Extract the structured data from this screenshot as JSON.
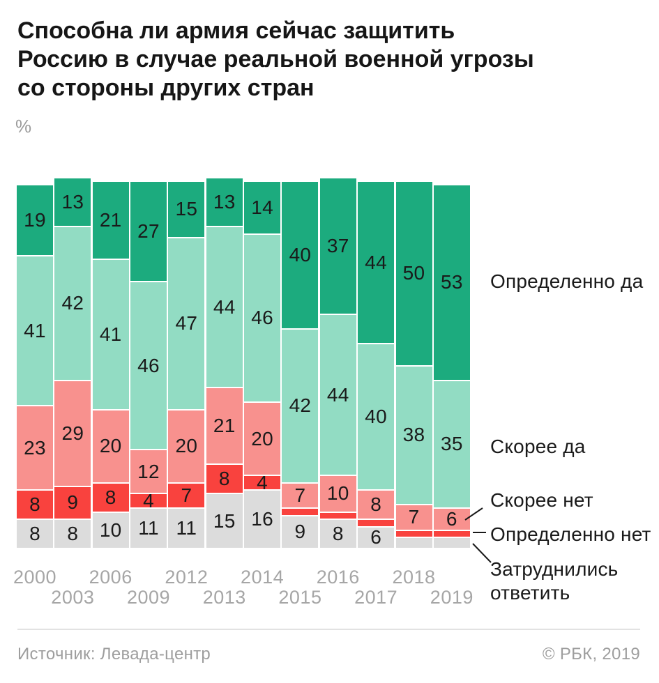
{
  "header": {
    "title": "Способна ли армия сейчас защитить\nРоссию в случае реальной военной угрозы\nсо стороны других стран",
    "unit": "%"
  },
  "chart_data": {
    "type": "bar",
    "subtype": "stacked-100-percent",
    "title": "Способна ли армия сейчас защитить Россию в случае реальной военной угрозы со стороны других стран",
    "unit": "%",
    "grid": false,
    "legend_position": "right",
    "value_labels": "inside-segments",
    "ylim": [
      0,
      100
    ],
    "categories": [
      "2000",
      "2003",
      "2006",
      "2009",
      "2012",
      "2013",
      "2014",
      "2015",
      "2016",
      "2017",
      "2018",
      "2019"
    ],
    "category_label_rows": [
      1,
      2,
      1,
      2,
      1,
      2,
      1,
      2,
      1,
      2,
      1,
      2
    ],
    "series": [
      {
        "name": "Определенно да",
        "color": "#1cab7e",
        "values": [
          19,
          13,
          21,
          27,
          15,
          13,
          14,
          40,
          37,
          44,
          50,
          53
        ],
        "label_shown": [
          true,
          true,
          true,
          true,
          true,
          true,
          true,
          true,
          true,
          true,
          true,
          true
        ]
      },
      {
        "name": "Скорее да",
        "color": "#92dcc3",
        "values": [
          41,
          42,
          41,
          46,
          47,
          44,
          46,
          42,
          44,
          40,
          38,
          35
        ],
        "label_shown": [
          true,
          true,
          true,
          true,
          true,
          true,
          true,
          true,
          true,
          true,
          true,
          true
        ]
      },
      {
        "name": "Скорее нет",
        "color": "#f8918e",
        "values": [
          23,
          29,
          20,
          12,
          20,
          21,
          20,
          7,
          10,
          8,
          7,
          6
        ],
        "label_shown": [
          true,
          true,
          true,
          true,
          true,
          true,
          true,
          true,
          true,
          true,
          true,
          true
        ]
      },
      {
        "name": "Определенно нет",
        "color": "#f9423e",
        "values": [
          8,
          9,
          8,
          4,
          7,
          8,
          4,
          2,
          2,
          2,
          2,
          2
        ],
        "label_shown": [
          true,
          true,
          true,
          true,
          true,
          true,
          true,
          false,
          false,
          false,
          false,
          false
        ]
      },
      {
        "name": "Затруднились ответить",
        "color": "#dcdcdc",
        "values": [
          8,
          8,
          10,
          11,
          11,
          15,
          16,
          9,
          8,
          6,
          3,
          3
        ],
        "label_shown": [
          true,
          true,
          true,
          true,
          true,
          true,
          true,
          true,
          true,
          true,
          false,
          false
        ]
      }
    ]
  },
  "legend": {
    "items": [
      "Определенно да",
      "Скорее да",
      "Скорее нет",
      "Определенно нет",
      "Затруднились\nответить"
    ]
  },
  "footer": {
    "source": "Источник: Левада-центр",
    "copyright": "© РБК, 2019"
  }
}
